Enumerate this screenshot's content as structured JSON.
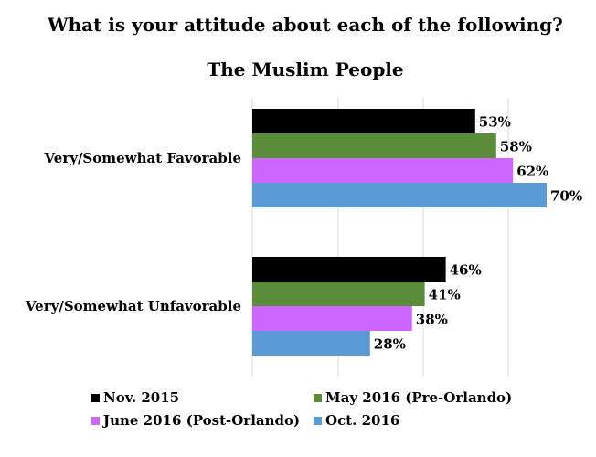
{
  "chart_data": {
    "type": "bar",
    "orientation": "horizontal",
    "title": "What is your attitude about each of the following?",
    "subtitle": "The Muslim People",
    "categories": [
      "Very/Somewhat Favorable",
      "Very/Somewhat Unfavorable"
    ],
    "series": [
      {
        "name": "Nov. 2015",
        "color": "#000000",
        "values": [
          53,
          46
        ]
      },
      {
        "name": "May 2016 (Pre-Orlando)",
        "color": "#5b8c3a",
        "values": [
          58,
          41
        ]
      },
      {
        "name": "June 2016 (Post-Orlando)",
        "color": "#cc66ff",
        "values": [
          62,
          38
        ]
      },
      {
        "name": "Oct. 2016",
        "color": "#5b9bd5",
        "values": [
          70,
          28
        ]
      }
    ],
    "value_suffix": "%",
    "xlim": [
      0,
      70
    ],
    "grid": true,
    "legend_position": "bottom",
    "xlabel": "",
    "ylabel": ""
  }
}
